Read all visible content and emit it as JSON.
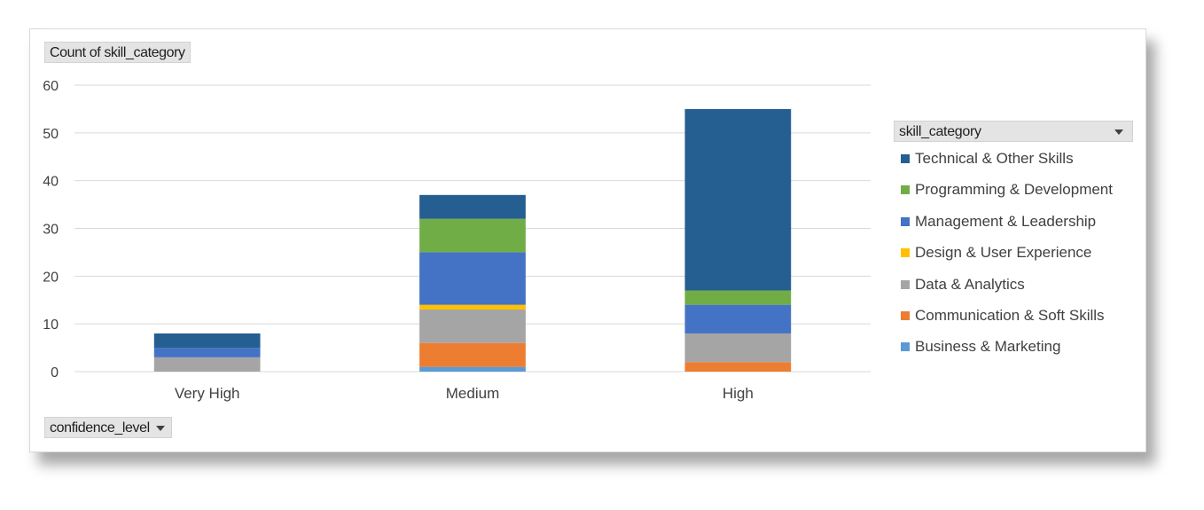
{
  "pivot": {
    "values_field": "Count of skill_category",
    "axis_field": "confidence_level",
    "legend_field": "skill_category"
  },
  "colors": {
    "Technical & Other Skills": "#255e91",
    "Programming & Development": "#70ad47",
    "Management & Leadership": "#4472c4",
    "Design & User Experience": "#ffc000",
    "Data & Analytics": "#a5a5a5",
    "Communication & Soft Skills": "#ed7d31",
    "Business & Marketing": "#5b9bd5"
  },
  "chart_data": {
    "type": "bar",
    "stacked": true,
    "categories": [
      "Very High",
      "Medium",
      "High"
    ],
    "ylim": [
      0,
      60
    ],
    "yticks": [
      0,
      10,
      20,
      30,
      40,
      50,
      60
    ],
    "grid": true,
    "legend_position": "right",
    "series": [
      {
        "name": "Business & Marketing",
        "values": [
          0,
          1,
          0
        ]
      },
      {
        "name": "Communication & Soft Skills",
        "values": [
          0,
          5,
          2
        ]
      },
      {
        "name": "Data & Analytics",
        "values": [
          3,
          7,
          6
        ]
      },
      {
        "name": "Design & User Experience",
        "values": [
          0,
          1,
          0
        ]
      },
      {
        "name": "Management & Leadership",
        "values": [
          2,
          11,
          6
        ]
      },
      {
        "name": "Programming & Development",
        "values": [
          0,
          7,
          3
        ]
      },
      {
        "name": "Technical & Other Skills",
        "values": [
          3,
          5,
          38
        ]
      }
    ]
  }
}
